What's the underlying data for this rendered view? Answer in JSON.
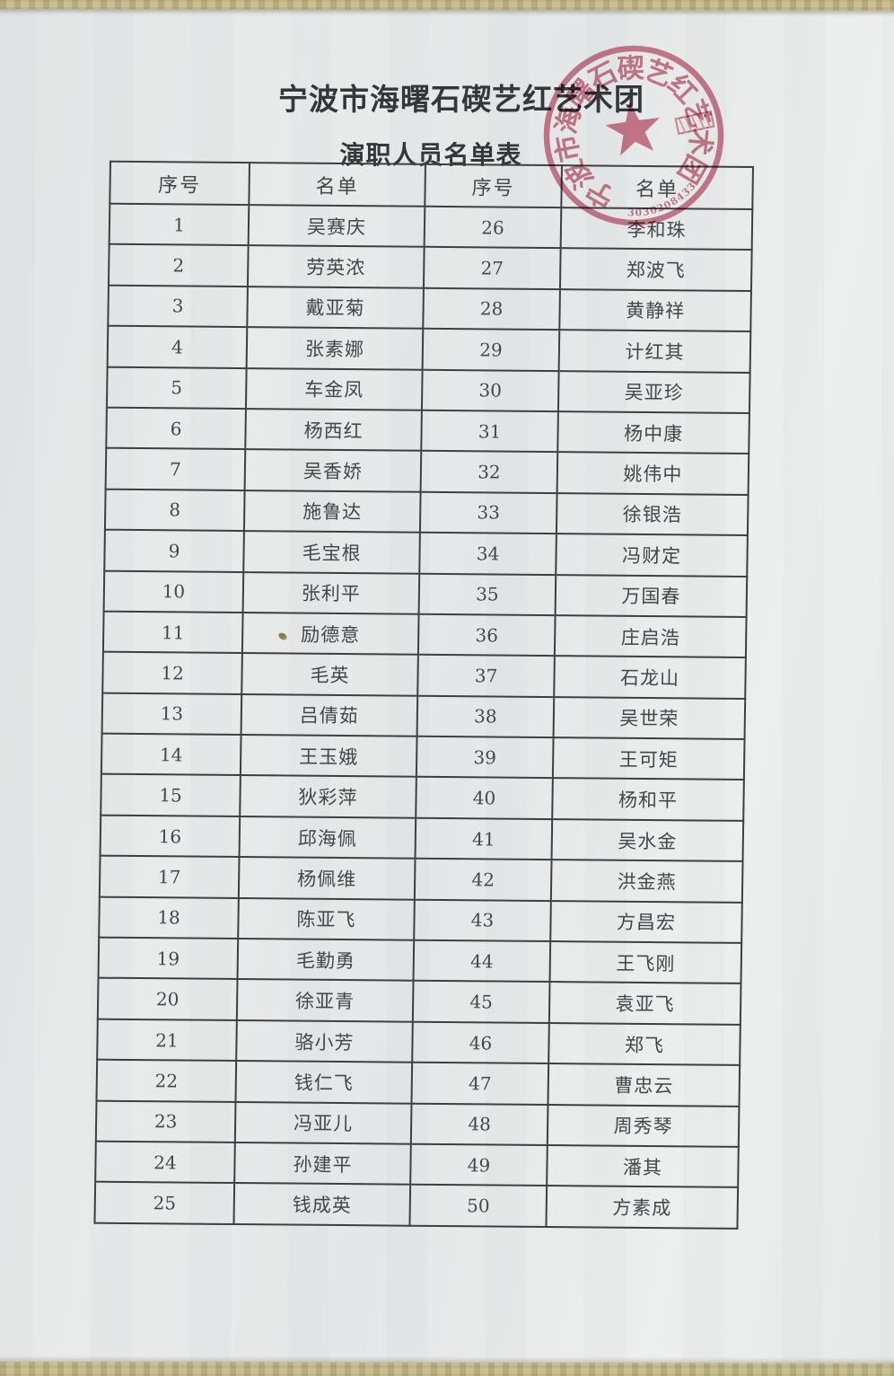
{
  "document": {
    "title": "宁波市海曙石碶艺红艺术团",
    "subtitle": "演职人员名单表"
  },
  "stamp": {
    "ring_text": "宁波市海曙石碶艺红艺术团",
    "code_digits": "3030208433",
    "color": "#c4536b"
  },
  "table": {
    "headers": [
      "序号",
      "名单",
      "序号",
      "名单"
    ],
    "rows": [
      [
        "1",
        "吴赛庆",
        "26",
        "李和珠"
      ],
      [
        "2",
        "劳英浓",
        "27",
        "郑波飞"
      ],
      [
        "3",
        "戴亚菊",
        "28",
        "黄静祥"
      ],
      [
        "4",
        "张素娜",
        "29",
        "计红其"
      ],
      [
        "5",
        "车金凤",
        "30",
        "吴亚珍"
      ],
      [
        "6",
        "杨西红",
        "31",
        "杨中康"
      ],
      [
        "7",
        "吴香娇",
        "32",
        "姚伟中"
      ],
      [
        "8",
        "施鲁达",
        "33",
        "徐银浩"
      ],
      [
        "9",
        "毛宝根",
        "34",
        "冯财定"
      ],
      [
        "10",
        "张利平",
        "35",
        "万国春"
      ],
      [
        "11",
        "励德意",
        "36",
        "庄启浩"
      ],
      [
        "12",
        "毛英",
        "37",
        "石龙山"
      ],
      [
        "13",
        "吕倩茹",
        "38",
        "吴世荣"
      ],
      [
        "14",
        "王玉娥",
        "39",
        "王可矩"
      ],
      [
        "15",
        "狄彩萍",
        "40",
        "杨和平"
      ],
      [
        "16",
        "邱海佩",
        "41",
        "吴水金"
      ],
      [
        "17",
        "杨佩维",
        "42",
        "洪金燕"
      ],
      [
        "18",
        "陈亚飞",
        "43",
        "方昌宏"
      ],
      [
        "19",
        "毛勤勇",
        "44",
        "王飞刚"
      ],
      [
        "20",
        "徐亚青",
        "45",
        "袁亚飞"
      ],
      [
        "21",
        "骆小芳",
        "46",
        "郑飞"
      ],
      [
        "22",
        "钱仁飞",
        "47",
        "曹忠云"
      ],
      [
        "23",
        "冯亚儿",
        "48",
        "周秀琴"
      ],
      [
        "24",
        "孙建平",
        "49",
        "潘其"
      ],
      [
        "25",
        "钱成英",
        "50",
        "方素成"
      ]
    ]
  },
  "colors": {
    "background": "#c9bf95",
    "paper": "#e8eaea",
    "ink": "#43474b",
    "grid": "#3d3f40",
    "stamp_red": "#c4536b"
  }
}
